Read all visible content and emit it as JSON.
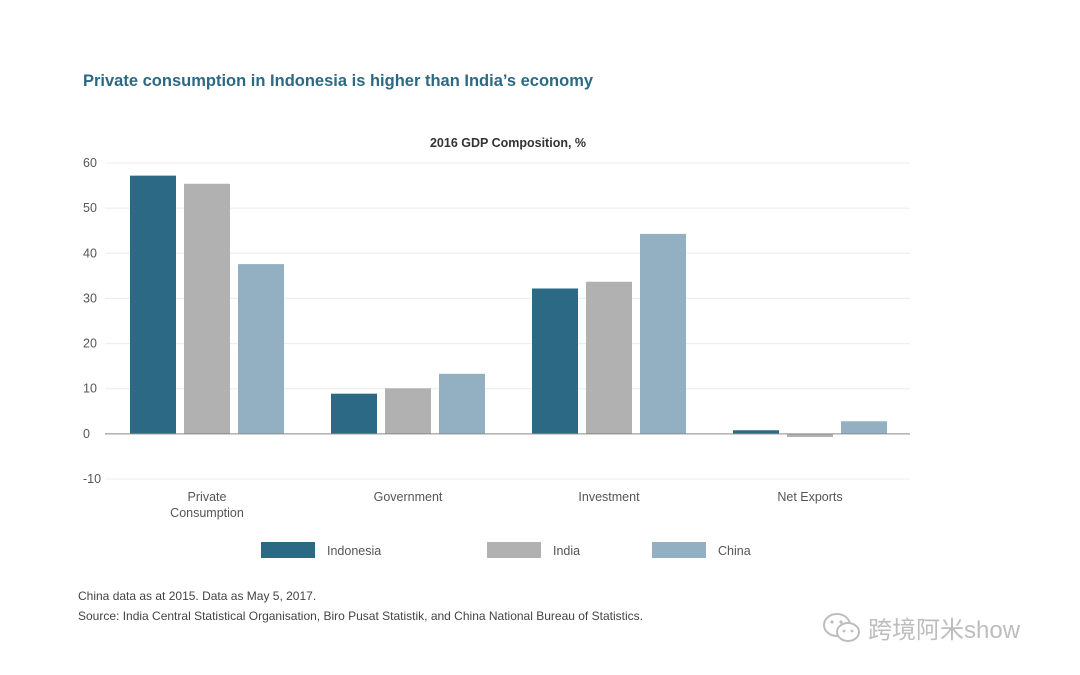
{
  "headline": "Private consumption in Indonesia is higher than India’s economy",
  "chart_data": {
    "type": "bar",
    "title": "2016 GDP Composition, %",
    "categories": [
      "Private\nConsumption",
      "Government",
      "Investment",
      "Net Exports"
    ],
    "series": [
      {
        "name": "Indonesia",
        "color": "#2c6985",
        "values": [
          57.2,
          8.9,
          32.2,
          0.8
        ]
      },
      {
        "name": "India",
        "color": "#b1b1b1",
        "values": [
          55.4,
          10.1,
          33.7,
          -0.7
        ]
      },
      {
        "name": "China",
        "color": "#93b0c2",
        "values": [
          37.6,
          13.3,
          44.3,
          2.8
        ]
      }
    ],
    "ylim": [
      -10,
      60
    ],
    "yticks": [
      60,
      50,
      40,
      30,
      20,
      10,
      0,
      -10
    ],
    "grid": true,
    "legend_position": "bottom"
  },
  "footnotes": {
    "note": "China data as at 2015. Data as May 5, 2017.",
    "source": "Source: India Central Statistical Organisation, Biro Pusat Statistik, and China National Bureau of Statistics."
  },
  "watermark": {
    "text": "跨境阿米show",
    "icon": "wechat-icon"
  }
}
